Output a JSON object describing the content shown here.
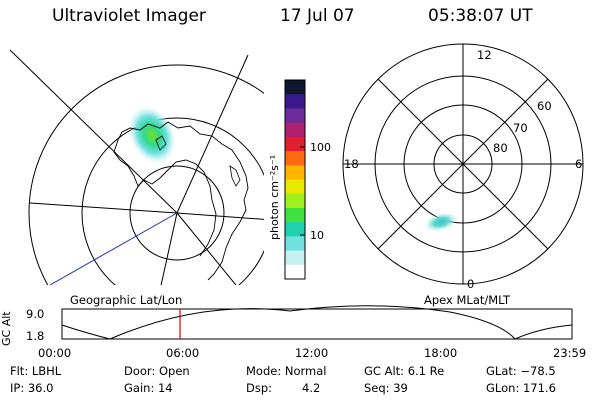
{
  "header": {
    "title": "Ultraviolet Imager",
    "date": "17 Jul 07",
    "time": "05:38:07 UT"
  },
  "colorbar": {
    "unit_label": "photon cm⁻²s⁻¹",
    "ticks": [
      "100",
      "10"
    ],
    "colors": [
      "#101830",
      "#3a1a8a",
      "#6a2c9a",
      "#b02070",
      "#e02030",
      "#ff6a10",
      "#ffb400",
      "#e8e800",
      "#a0f020",
      "#40e040",
      "#20d0b0",
      "#70e0e0",
      "#c8f0f0",
      "#ffffff"
    ]
  },
  "geo_panel": {
    "caption": "Geographic Lat/Lon"
  },
  "polar_panel": {
    "caption": "Apex MLat/MLT",
    "mlt_labels": [
      "12",
      "18",
      "6",
      "0"
    ],
    "lat_labels": [
      "60",
      "70",
      "80"
    ]
  },
  "altitude_plot": {
    "ylabel": "GC Alt",
    "yticks": [
      "9.0",
      "1.8"
    ],
    "xticks": [
      "00:00",
      "06:00",
      "12:00",
      "18:00",
      "23:59"
    ],
    "marker_color": "#e00000"
  },
  "info": {
    "filter": "Flt: LBHL",
    "door": "Door: Open",
    "mode": "Mode: Normal",
    "gc_alt": "GC Alt: 6.1 Re",
    "glat": "GLat: −78.5",
    "ip": "IP: 36.0",
    "gain": "Gain: 14",
    "dsp_label": "Dsp:",
    "dsp_value": "4.2",
    "seq": "Seq: 39",
    "glon": "GLon: 171.6"
  }
}
